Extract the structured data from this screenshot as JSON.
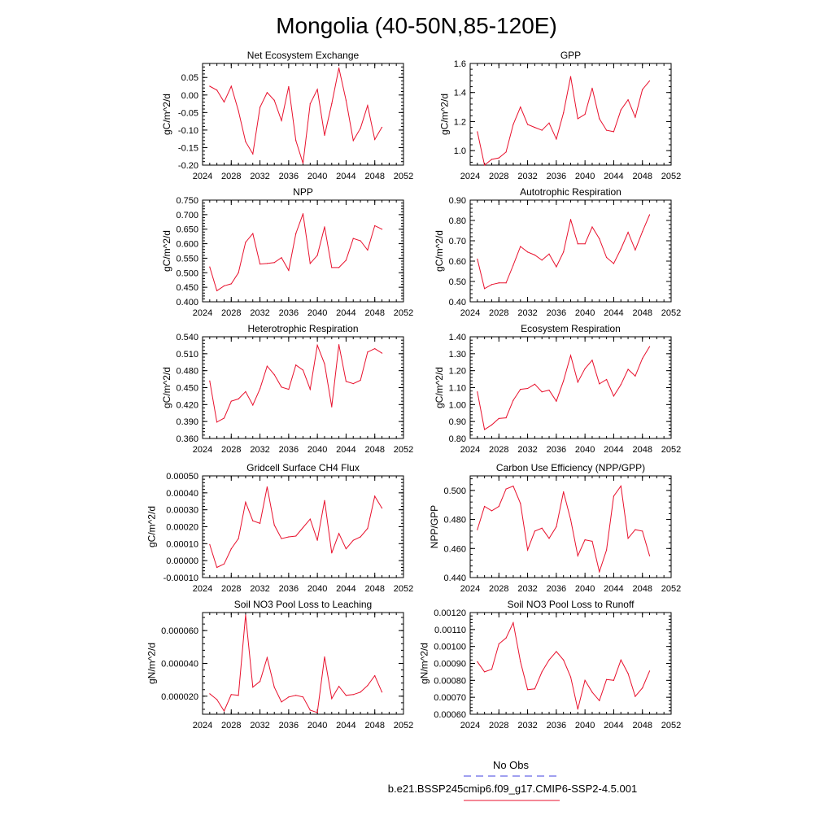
{
  "title": "Mongolia (40-50N,85-120E)",
  "colors": {
    "model": "#e8112d",
    "obs": "#4040e0",
    "axis": "#000000"
  },
  "legend": {
    "obs_label": "No Obs",
    "model_label": "b.e21.BSSP245cmip6.f09_g17.CMIP6-SSP2-4.5.001"
  },
  "chart_data": [
    {
      "type": "line",
      "title": "Net Ecosystem Exchange",
      "ylabel": "gC/m^2/d",
      "xlim": [
        2024,
        2052
      ],
      "ylim": [
        -0.2,
        0.09
      ],
      "xticks": [
        2024,
        2028,
        2032,
        2036,
        2040,
        2044,
        2048,
        2052
      ],
      "xtick_labels": [
        "2024",
        "2028",
        "2032",
        "2036",
        "2040",
        "2044",
        "2048",
        "2052"
      ],
      "yticks": [
        -0.2,
        -0.15,
        -0.1,
        -0.05,
        0.0,
        0.05
      ],
      "ytick_labels": [
        "-0.20",
        "-0.15",
        "-0.10",
        "-0.05",
        "0.00",
        "0.05"
      ],
      "x": [
        2025,
        2026,
        2027,
        2028,
        2029,
        2030,
        2031,
        2032,
        2033,
        2034,
        2035,
        2036,
        2037,
        2038,
        2039,
        2040,
        2041,
        2042,
        2043,
        2044,
        2045,
        2046,
        2047,
        2048,
        2049
      ],
      "values": [
        0.025,
        0.014,
        -0.02,
        0.025,
        -0.045,
        -0.133,
        -0.168,
        -0.035,
        0.007,
        -0.015,
        -0.073,
        0.024,
        -0.13,
        -0.195,
        -0.025,
        0.016,
        -0.115,
        -0.025,
        0.077,
        -0.015,
        -0.13,
        -0.095,
        -0.03,
        -0.127,
        -0.092
      ]
    },
    {
      "type": "line",
      "title": "GPP",
      "ylabel": "gC/m^2/d",
      "xlim": [
        2024,
        2052
      ],
      "ylim": [
        0.9,
        1.6
      ],
      "xticks": [
        2024,
        2028,
        2032,
        2036,
        2040,
        2044,
        2048,
        2052
      ],
      "xtick_labels": [
        "2024",
        "2028",
        "2032",
        "2036",
        "2040",
        "2044",
        "2048",
        "2052"
      ],
      "yticks": [
        1.0,
        1.2,
        1.4,
        1.6
      ],
      "ytick_labels": [
        "1.0",
        "1.2",
        "1.4",
        "1.6"
      ],
      "x": [
        2025,
        2026,
        2027,
        2028,
        2029,
        2030,
        2031,
        2032,
        2033,
        2034,
        2035,
        2036,
        2037,
        2038,
        2039,
        2040,
        2041,
        2042,
        2043,
        2044,
        2045,
        2046,
        2047,
        2048,
        2049
      ],
      "values": [
        1.13,
        0.9,
        0.94,
        0.95,
        0.99,
        1.18,
        1.3,
        1.18,
        1.16,
        1.14,
        1.19,
        1.08,
        1.26,
        1.51,
        1.22,
        1.25,
        1.43,
        1.22,
        1.14,
        1.13,
        1.28,
        1.35,
        1.23,
        1.42,
        1.48
      ]
    },
    {
      "type": "line",
      "title": "NPP",
      "ylabel": "gC/m^2/d",
      "xlim": [
        2024,
        2052
      ],
      "ylim": [
        0.4,
        0.75
      ],
      "xticks": [
        2024,
        2028,
        2032,
        2036,
        2040,
        2044,
        2048,
        2052
      ],
      "xtick_labels": [
        "2024",
        "2028",
        "2032",
        "2036",
        "2040",
        "2044",
        "2048",
        "2052"
      ],
      "yticks": [
        0.4,
        0.45,
        0.5,
        0.55,
        0.6,
        0.65,
        0.7,
        0.75
      ],
      "ytick_labels": [
        "0.400",
        "0.450",
        "0.500",
        "0.550",
        "0.600",
        "0.650",
        "0.700",
        "0.750"
      ],
      "x": [
        2025,
        2026,
        2027,
        2028,
        2029,
        2030,
        2031,
        2032,
        2033,
        2034,
        2035,
        2036,
        2037,
        2038,
        2039,
        2040,
        2041,
        2042,
        2043,
        2044,
        2045,
        2046,
        2047,
        2048,
        2049
      ],
      "values": [
        0.52,
        0.438,
        0.455,
        0.462,
        0.5,
        0.605,
        0.635,
        0.53,
        0.532,
        0.535,
        0.552,
        0.508,
        0.635,
        0.703,
        0.532,
        0.56,
        0.658,
        0.518,
        0.518,
        0.543,
        0.618,
        0.61,
        0.578,
        0.662,
        0.65
      ]
    },
    {
      "type": "line",
      "title": "Autotrophic Respiration",
      "ylabel": "gC/m^2/d",
      "xlim": [
        2024,
        2052
      ],
      "ylim": [
        0.4,
        0.9
      ],
      "xticks": [
        2024,
        2028,
        2032,
        2036,
        2040,
        2044,
        2048,
        2052
      ],
      "xtick_labels": [
        "2024",
        "2028",
        "2032",
        "2036",
        "2040",
        "2044",
        "2048",
        "2052"
      ],
      "yticks": [
        0.4,
        0.5,
        0.6,
        0.7,
        0.8,
        0.9
      ],
      "ytick_labels": [
        "0.40",
        "0.50",
        "0.60",
        "0.70",
        "0.80",
        "0.90"
      ],
      "x": [
        2025,
        2026,
        2027,
        2028,
        2029,
        2030,
        2031,
        2032,
        2033,
        2034,
        2035,
        2036,
        2037,
        2038,
        2039,
        2040,
        2041,
        2042,
        2043,
        2044,
        2045,
        2046,
        2047,
        2048,
        2049
      ],
      "values": [
        0.61,
        0.465,
        0.485,
        0.493,
        0.493,
        0.58,
        0.672,
        0.645,
        0.63,
        0.605,
        0.635,
        0.572,
        0.645,
        0.805,
        0.685,
        0.685,
        0.768,
        0.71,
        0.618,
        0.588,
        0.66,
        0.742,
        0.655,
        0.745,
        0.828
      ]
    },
    {
      "type": "line",
      "title": "Heterotrophic Respiration",
      "ylabel": "gC/m^2/d",
      "xlim": [
        2024,
        2052
      ],
      "ylim": [
        0.36,
        0.54
      ],
      "xticks": [
        2024,
        2028,
        2032,
        2036,
        2040,
        2044,
        2048,
        2052
      ],
      "xtick_labels": [
        "2024",
        "2028",
        "2032",
        "2036",
        "2040",
        "2044",
        "2048",
        "2052"
      ],
      "yticks": [
        0.36,
        0.39,
        0.42,
        0.45,
        0.48,
        0.51,
        0.54
      ],
      "ytick_labels": [
        "0.360",
        "0.390",
        "0.420",
        "0.450",
        "0.480",
        "0.510",
        "0.540"
      ],
      "x": [
        2025,
        2026,
        2027,
        2028,
        2029,
        2030,
        2031,
        2032,
        2033,
        2034,
        2035,
        2036,
        2037,
        2038,
        2039,
        2040,
        2041,
        2042,
        2043,
        2044,
        2045,
        2046,
        2047,
        2048,
        2049
      ],
      "values": [
        0.462,
        0.389,
        0.396,
        0.426,
        0.43,
        0.443,
        0.419,
        0.448,
        0.488,
        0.473,
        0.451,
        0.447,
        0.49,
        0.481,
        0.447,
        0.525,
        0.492,
        0.416,
        0.526,
        0.461,
        0.457,
        0.463,
        0.513,
        0.519,
        0.511
      ]
    },
    {
      "type": "line",
      "title": "Ecosystem Respiration",
      "ylabel": "gC/m^2/d",
      "xlim": [
        2024,
        2052
      ],
      "ylim": [
        0.8,
        1.4
      ],
      "xticks": [
        2024,
        2028,
        2032,
        2036,
        2040,
        2044,
        2048,
        2052
      ],
      "xtick_labels": [
        "2024",
        "2028",
        "2032",
        "2036",
        "2040",
        "2044",
        "2048",
        "2052"
      ],
      "yticks": [
        0.8,
        0.9,
        1.0,
        1.1,
        1.2,
        1.3,
        1.4
      ],
      "ytick_labels": [
        "0.80",
        "0.90",
        "1.00",
        "1.10",
        "1.20",
        "1.30",
        "1.40"
      ],
      "x": [
        2025,
        2026,
        2027,
        2028,
        2029,
        2030,
        2031,
        2032,
        2033,
        2034,
        2035,
        2036,
        2037,
        2038,
        2039,
        2040,
        2041,
        2042,
        2043,
        2044,
        2045,
        2046,
        2047,
        2048,
        2049
      ],
      "values": [
        1.075,
        0.853,
        0.88,
        0.918,
        0.922,
        1.025,
        1.09,
        1.095,
        1.12,
        1.075,
        1.085,
        1.02,
        1.14,
        1.29,
        1.132,
        1.212,
        1.262,
        1.122,
        1.148,
        1.05,
        1.118,
        1.208,
        1.168,
        1.272,
        1.342
      ]
    },
    {
      "type": "line",
      "title": "Gridcell Surface CH4 Flux",
      "ylabel": "gC/m^2/d",
      "xlim": [
        2024,
        2052
      ],
      "ylim": [
        -0.0001,
        0.0005
      ],
      "xticks": [
        2024,
        2028,
        2032,
        2036,
        2040,
        2044,
        2048,
        2052
      ],
      "xtick_labels": [
        "2024",
        "2028",
        "2032",
        "2036",
        "2040",
        "2044",
        "2048",
        "2052"
      ],
      "yticks": [
        -0.0001,
        0.0,
        0.0001,
        0.0002,
        0.0003,
        0.0004,
        0.0005
      ],
      "ytick_labels": [
        "-0.00010",
        "0.00000",
        "0.00010",
        "0.00020",
        "0.00030",
        "0.00040",
        "0.00050"
      ],
      "x": [
        2025,
        2026,
        2027,
        2028,
        2029,
        2030,
        2031,
        2032,
        2033,
        2034,
        2035,
        2036,
        2037,
        2038,
        2039,
        2040,
        2041,
        2042,
        2043,
        2044,
        2045,
        2046,
        2047,
        2048,
        2049
      ],
      "values": [
        9.5e-05,
        -4e-05,
        -2e-05,
        7e-05,
        0.00013,
        0.000345,
        0.000235,
        0.00022,
        0.000435,
        0.00021,
        0.00013,
        0.00014,
        0.000145,
        0.000195,
        0.000245,
        0.00012,
        0.000355,
        4.5e-05,
        0.00016,
        7e-05,
        0.00012,
        0.00014,
        0.00019,
        0.00038,
        0.00031
      ]
    },
    {
      "type": "line",
      "title": "Carbon Use Efficiency (NPP/GPP)",
      "ylabel": "NPP/GPP",
      "xlim": [
        2024,
        2052
      ],
      "ylim": [
        0.44,
        0.51
      ],
      "xticks": [
        2024,
        2028,
        2032,
        2036,
        2040,
        2044,
        2048,
        2052
      ],
      "xtick_labels": [
        "2024",
        "2028",
        "2032",
        "2036",
        "2040",
        "2044",
        "2048",
        "2052"
      ],
      "yticks": [
        0.44,
        0.46,
        0.48,
        0.5
      ],
      "ytick_labels": [
        "0.440",
        "0.460",
        "0.480",
        "0.500"
      ],
      "x": [
        2025,
        2026,
        2027,
        2028,
        2029,
        2030,
        2031,
        2032,
        2033,
        2034,
        2035,
        2036,
        2037,
        2038,
        2039,
        2040,
        2041,
        2042,
        2043,
        2044,
        2045,
        2046,
        2047,
        2048,
        2049
      ],
      "values": [
        0.473,
        0.489,
        0.486,
        0.489,
        0.501,
        0.503,
        0.491,
        0.459,
        0.472,
        0.474,
        0.467,
        0.475,
        0.499,
        0.48,
        0.455,
        0.466,
        0.465,
        0.444,
        0.459,
        0.496,
        0.503,
        0.467,
        0.473,
        0.472,
        0.455
      ]
    },
    {
      "type": "line",
      "title": "Soil NO3 Pool Loss to Leaching",
      "ylabel": "gN/m^2/d",
      "xlim": [
        2024,
        2052
      ],
      "ylim": [
        9e-06,
        7.1e-05
      ],
      "xticks": [
        2024,
        2028,
        2032,
        2036,
        2040,
        2044,
        2048,
        2052
      ],
      "xtick_labels": [
        "2024",
        "2028",
        "2032",
        "2036",
        "2040",
        "2044",
        "2048",
        "2052"
      ],
      "yticks": [
        2e-05,
        4e-05,
        6e-05
      ],
      "ytick_labels": [
        "0.000020",
        "0.000040",
        "0.000060"
      ],
      "x": [
        2025,
        2026,
        2027,
        2028,
        2029,
        2030,
        2031,
        2032,
        2033,
        2034,
        2035,
        2036,
        2037,
        2038,
        2039,
        2040,
        2041,
        2042,
        2043,
        2044,
        2045,
        2046,
        2047,
        2048,
        2049
      ],
      "values": [
        2.15e-05,
        1.8e-05,
        1.1e-05,
        2.1e-05,
        2.05e-05,
        6.95e-05,
        2.55e-05,
        2.9e-05,
        4.35e-05,
        2.55e-05,
        1.65e-05,
        1.95e-05,
        2.05e-05,
        1.95e-05,
        1.15e-05,
        1e-05,
        4.4e-05,
        1.85e-05,
        2.6e-05,
        2.05e-05,
        2.1e-05,
        2.25e-05,
        2.65e-05,
        3.25e-05,
        2.25e-05
      ]
    },
    {
      "type": "line",
      "title": "Soil NO3 Pool Loss to Runoff",
      "ylabel": "gN/m^2/d",
      "xlim": [
        2024,
        2052
      ],
      "ylim": [
        0.0006,
        0.0012
      ],
      "xticks": [
        2024,
        2028,
        2032,
        2036,
        2040,
        2044,
        2048,
        2052
      ],
      "xtick_labels": [
        "2024",
        "2028",
        "2032",
        "2036",
        "2040",
        "2044",
        "2048",
        "2052"
      ],
      "yticks": [
        0.0006,
        0.0007,
        0.0008,
        0.0009,
        0.001,
        0.0011,
        0.0012
      ],
      "ytick_labels": [
        "0.00060",
        "0.00070",
        "0.00080",
        "0.00090",
        "0.00100",
        "0.00110",
        "0.00120"
      ],
      "x": [
        2025,
        2026,
        2027,
        2028,
        2029,
        2030,
        2031,
        2032,
        2033,
        2034,
        2035,
        2036,
        2037,
        2038,
        2039,
        2040,
        2041,
        2042,
        2043,
        2044,
        2045,
        2046,
        2047,
        2048,
        2049
      ],
      "values": [
        0.00091,
        0.00085,
        0.000865,
        0.001015,
        0.00105,
        0.00114,
        0.00091,
        0.000745,
        0.00075,
        0.00085,
        0.00092,
        0.00097,
        0.00092,
        0.00082,
        0.00063,
        0.0008,
        0.00073,
        0.00068,
        0.000805,
        0.0008,
        0.00092,
        0.00084,
        0.000705,
        0.000755,
        0.000855
      ]
    }
  ]
}
